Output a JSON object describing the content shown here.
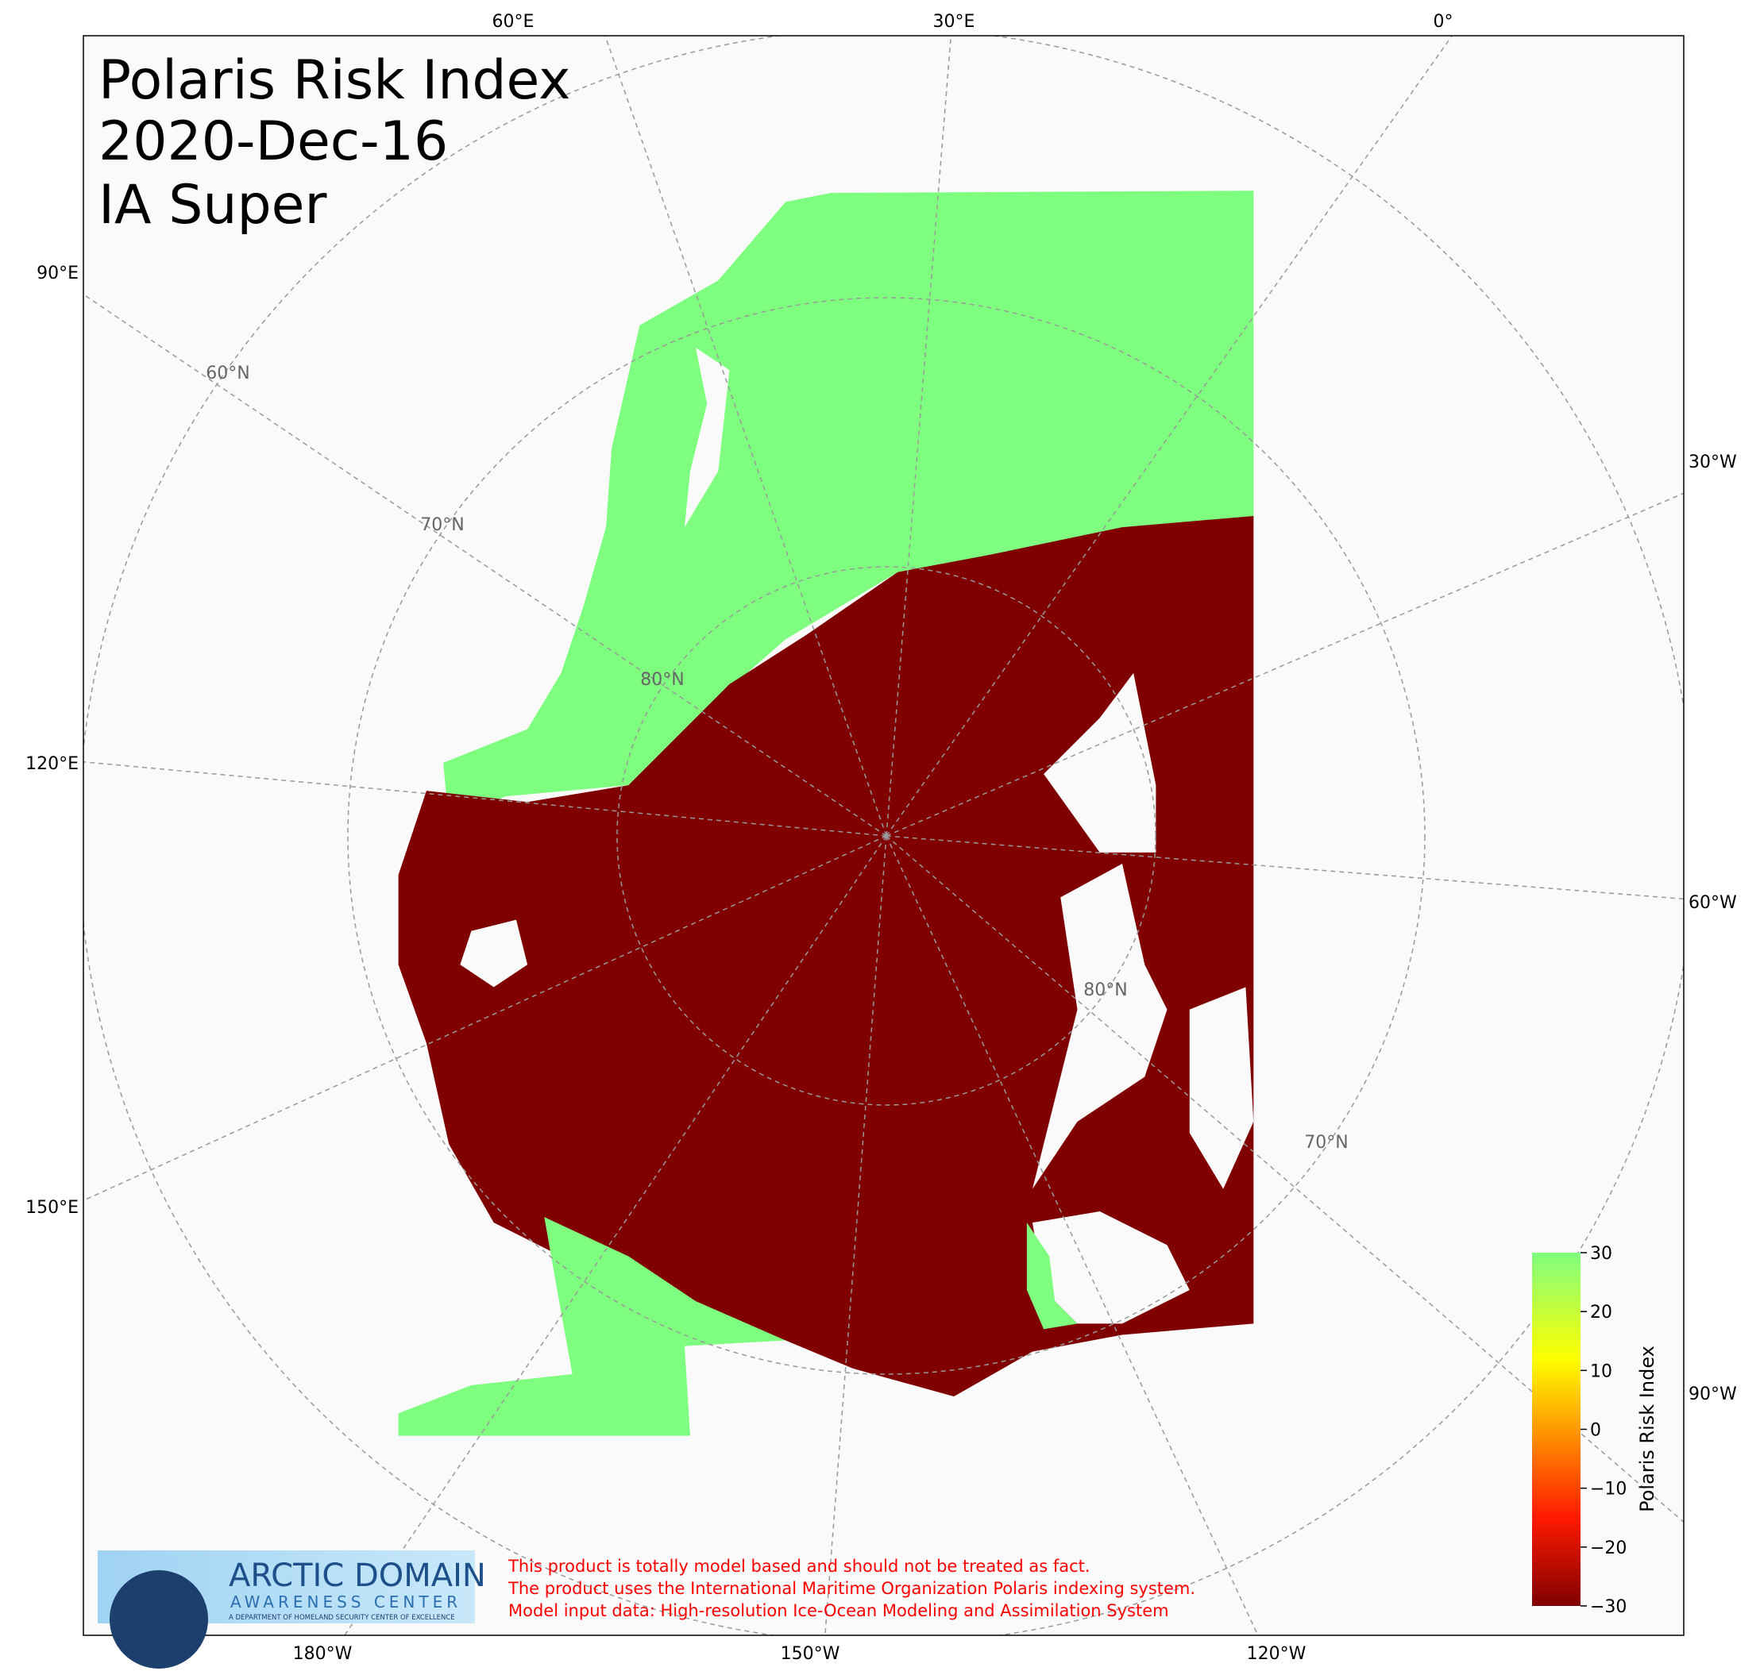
{
  "title_lines": [
    "Polaris Risk Index",
    "2020-Dec-16",
    "IA Super"
  ],
  "longitude_labels": {
    "top": [
      "60°E",
      "30°E",
      "0°"
    ],
    "left": [
      "90°E",
      "120°E",
      "150°E"
    ],
    "right": [
      "30°W",
      "60°W",
      "90°W"
    ],
    "bottom": [
      "180°W",
      "150°W",
      "120°W"
    ]
  },
  "latitude_labels": [
    "60°N",
    "70°N",
    "80°N",
    "80°N",
    "70°N"
  ],
  "colorbar": {
    "label": "Polaris Risk Index",
    "lim": [
      -30,
      30
    ],
    "ticks": [
      {
        "value": -30,
        "label": "−30"
      },
      {
        "value": -20,
        "label": "−20"
      },
      {
        "value": -10,
        "label": "−10"
      },
      0,
      10,
      20,
      30
    ]
  },
  "logo": {
    "title": "ARCTIC DOMAIN",
    "subtitle": "AWARENESS CENTER",
    "tagline": "A DEPARTMENT OF HOMELAND SECURITY CENTER OF EXCELLENCE"
  },
  "disclaimer": [
    "This product is totally model based and should not be treated as fact.",
    "The product uses the International Maritime Organization Polaris indexing system.",
    "Model input data: High-resolution Ice-Ocean Modeling and Assimilation System"
  ]
}
